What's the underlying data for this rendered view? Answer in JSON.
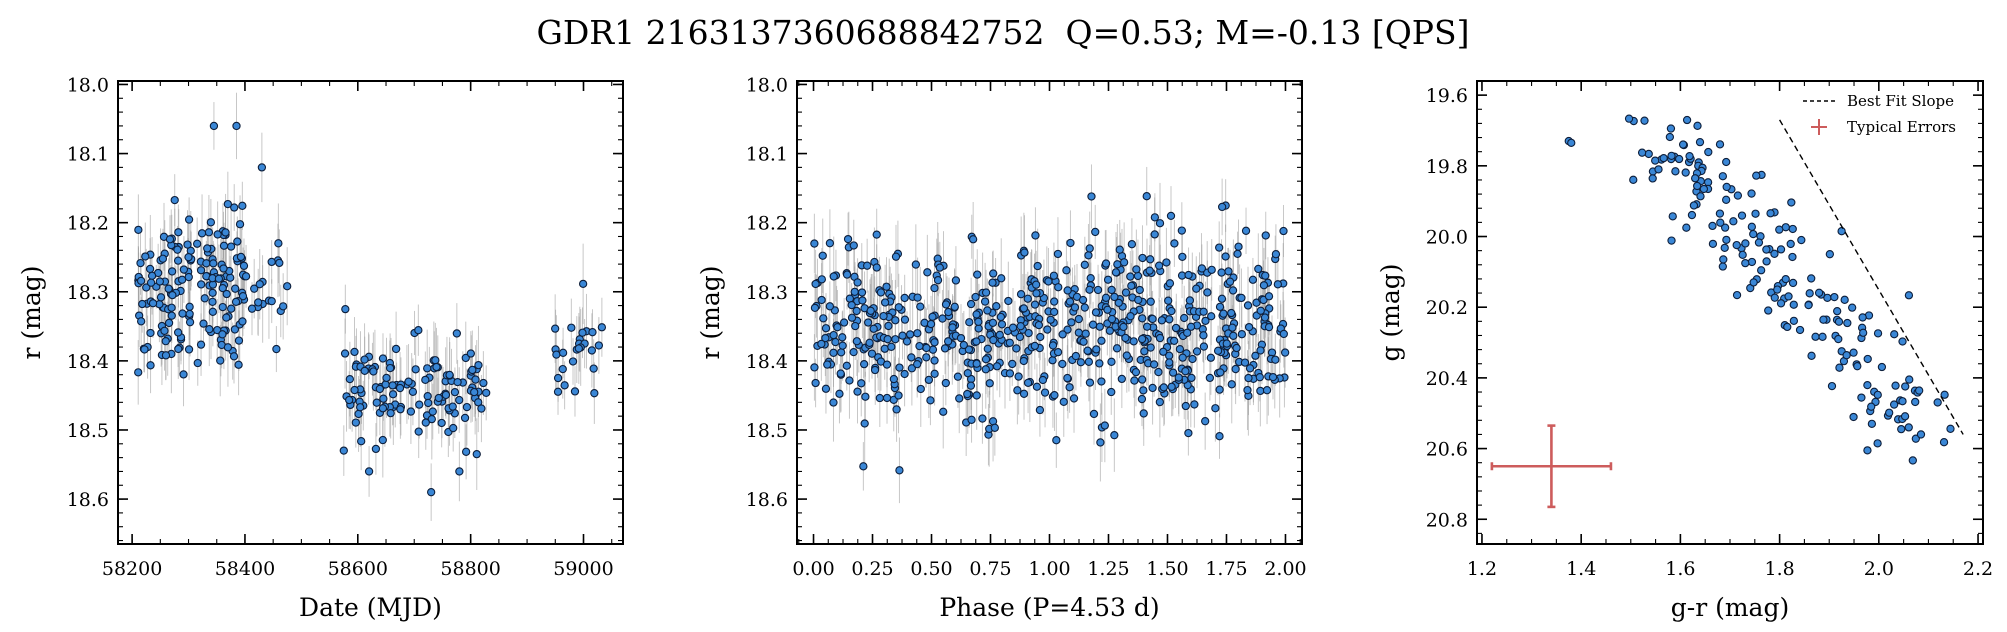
{
  "figure_title": "GDR1 2163137360688842752  Q=0.53; M=-0.13 [QPS]",
  "chart_data": [
    {
      "type": "scatter",
      "id": "lightcurve",
      "xlabel": "Date (MJD)",
      "ylabel": "r (mag)",
      "xlim": [
        58175,
        59070
      ],
      "ylim": [
        18.665,
        17.995
      ],
      "y_inverted": true,
      "xticks": [
        58200,
        58400,
        58600,
        58800,
        59000
      ],
      "xtick_labels": [
        "58200",
        "58400",
        "58600",
        "58800",
        "59000"
      ],
      "yticks": [
        18.0,
        18.1,
        18.2,
        18.3,
        18.4,
        18.5,
        18.6
      ],
      "ytick_labels": [
        "18.0",
        "18.1",
        "18.2",
        "18.3",
        "18.4",
        "18.5",
        "18.6"
      ],
      "typical_error": 0.045,
      "segments": [
        {
          "x_range": [
            58210,
            58400
          ],
          "y_center": 18.3,
          "y_spread": 0.1,
          "n": 170
        },
        {
          "x_range": [
            58400,
            58475
          ],
          "y_center": 18.3,
          "y_spread": 0.07,
          "n": 18
        },
        {
          "x_range": [
            58575,
            58830
          ],
          "y_center": 18.44,
          "y_spread": 0.06,
          "n": 125
        },
        {
          "x_range": [
            58945,
            59035
          ],
          "y_center": 18.4,
          "y_spread": 0.07,
          "n": 26
        }
      ],
      "highlighted_points": [
        {
          "x": 58345,
          "y": 18.06
        },
        {
          "x": 58385,
          "y": 18.06
        },
        {
          "x": 58430,
          "y": 18.12
        },
        {
          "x": 58730,
          "y": 18.59
        },
        {
          "x": 58780,
          "y": 18.56
        },
        {
          "x": 58620,
          "y": 18.56
        }
      ],
      "grid": false
    },
    {
      "type": "scatter",
      "id": "phase",
      "xlabel": "Phase (P=4.53 d)",
      "ylabel": "r (mag)",
      "xlim": [
        -0.07,
        2.07
      ],
      "ylim": [
        18.665,
        17.995
      ],
      "y_inverted": true,
      "xticks": [
        0.0,
        0.25,
        0.5,
        0.75,
        1.0,
        1.25,
        1.5,
        1.75,
        2.0
      ],
      "xtick_labels": [
        "0.00",
        "0.25",
        "0.50",
        "0.75",
        "1.00",
        "1.25",
        "1.50",
        "1.75",
        "2.00"
      ],
      "yticks": [
        18.0,
        18.1,
        18.2,
        18.3,
        18.4,
        18.5,
        18.6
      ],
      "ytick_labels": [
        "18.0",
        "18.1",
        "18.2",
        "18.3",
        "18.4",
        "18.5",
        "18.6"
      ],
      "typical_error": 0.045,
      "phase_range": [
        0.0,
        2.0
      ],
      "y_center": 18.35,
      "y_spread": 0.11,
      "n": 680,
      "grid": false
    },
    {
      "type": "scatter",
      "id": "color_magnitude",
      "xlabel": "g-r (mag)",
      "ylabel": "g (mag)",
      "xlim": [
        1.19,
        2.21
      ],
      "ylim": [
        20.87,
        19.56
      ],
      "y_inverted": true,
      "xticks": [
        1.2,
        1.4,
        1.6,
        1.8,
        2.0,
        2.2
      ],
      "xtick_labels": [
        "1.2",
        "1.4",
        "1.6",
        "1.8",
        "2.0",
        "2.2"
      ],
      "yticks": [
        19.6,
        19.8,
        20.0,
        20.2,
        20.4,
        20.6,
        20.8
      ],
      "ytick_labels": [
        "19.6",
        "19.8",
        "20.0",
        "20.2",
        "20.4",
        "20.6",
        "20.8"
      ],
      "trend": {
        "x_start": 1.55,
        "x_end": 2.09,
        "y_start": 19.72,
        "y_end": 20.55,
        "y_scatter": 0.07
      },
      "n": 190,
      "outlier_points": [
        {
          "x": 1.375,
          "y": 19.73
        },
        {
          "x": 1.38,
          "y": 19.735
        },
        {
          "x": 1.925,
          "y": 19.985
        },
        {
          "x": 2.085,
          "y": 20.56
        }
      ],
      "best_fit_line": {
        "x": [
          1.8,
          2.17
        ],
        "y": [
          19.67,
          20.56
        ]
      },
      "typical_error_marker": {
        "x": 1.34,
        "y": 20.65,
        "xerr": 0.12,
        "yerr": 0.115
      },
      "legend": {
        "placement": "upper-right",
        "entries": [
          "Best Fit Slope",
          "Typical Errors"
        ]
      },
      "grid": false
    }
  ]
}
